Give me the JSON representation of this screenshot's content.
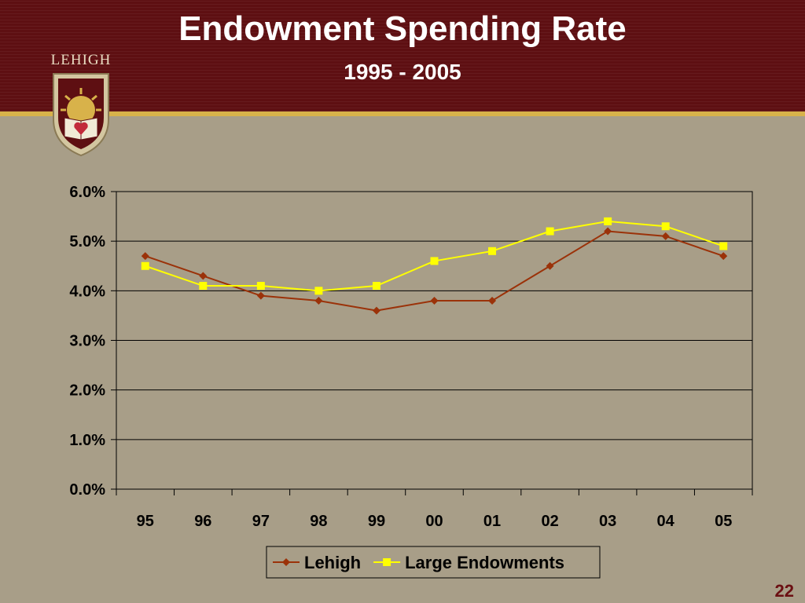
{
  "slide": {
    "title": "Endowment Spending Rate",
    "subtitle": "1995 - 2005",
    "logo_text": "LEHIGH",
    "page_number": "22"
  },
  "colors": {
    "header": "#5e0f12",
    "gold": "#d8b24a",
    "background": "#a89e88",
    "lehigh": "#9b3209",
    "large_endowments": "#ffff00"
  },
  "chart_data": {
    "type": "line",
    "categories": [
      "95",
      "96",
      "97",
      "98",
      "99",
      "00",
      "01",
      "02",
      "03",
      "04",
      "05"
    ],
    "series": [
      {
        "name": "Lehigh",
        "values": [
          4.7,
          4.3,
          3.9,
          3.8,
          3.6,
          3.8,
          3.8,
          4.5,
          5.2,
          5.1,
          4.7
        ],
        "color": "#9b3209",
        "marker": "diamond"
      },
      {
        "name": "Large Endowments",
        "values": [
          4.5,
          4.1,
          4.1,
          4.0,
          4.1,
          4.6,
          4.8,
          5.2,
          5.4,
          5.3,
          4.9
        ],
        "color": "#ffff00",
        "marker": "square"
      }
    ],
    "ylim": [
      0,
      6
    ],
    "yticks": [
      "0.0%",
      "1.0%",
      "2.0%",
      "3.0%",
      "4.0%",
      "5.0%",
      "6.0%"
    ],
    "grid": true,
    "legend": "bottom"
  }
}
